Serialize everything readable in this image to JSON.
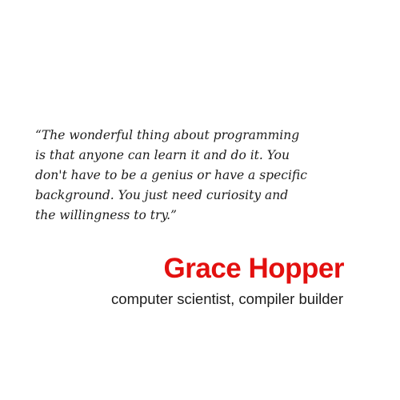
{
  "quote": {
    "lines": [
      "“The wonderful thing about programming",
      "is that anyone can learn it and do it. You",
      "don't have to be a genius or have a specific",
      "background. You just need curiosity and",
      "the willingness to try.”"
    ]
  },
  "author": {
    "name": "Grace Hopper",
    "title": "computer scientist, compiler builder"
  },
  "colors": {
    "background": "#ffffff",
    "author_name": "#e3100f",
    "text": "#1c1c1c"
  }
}
